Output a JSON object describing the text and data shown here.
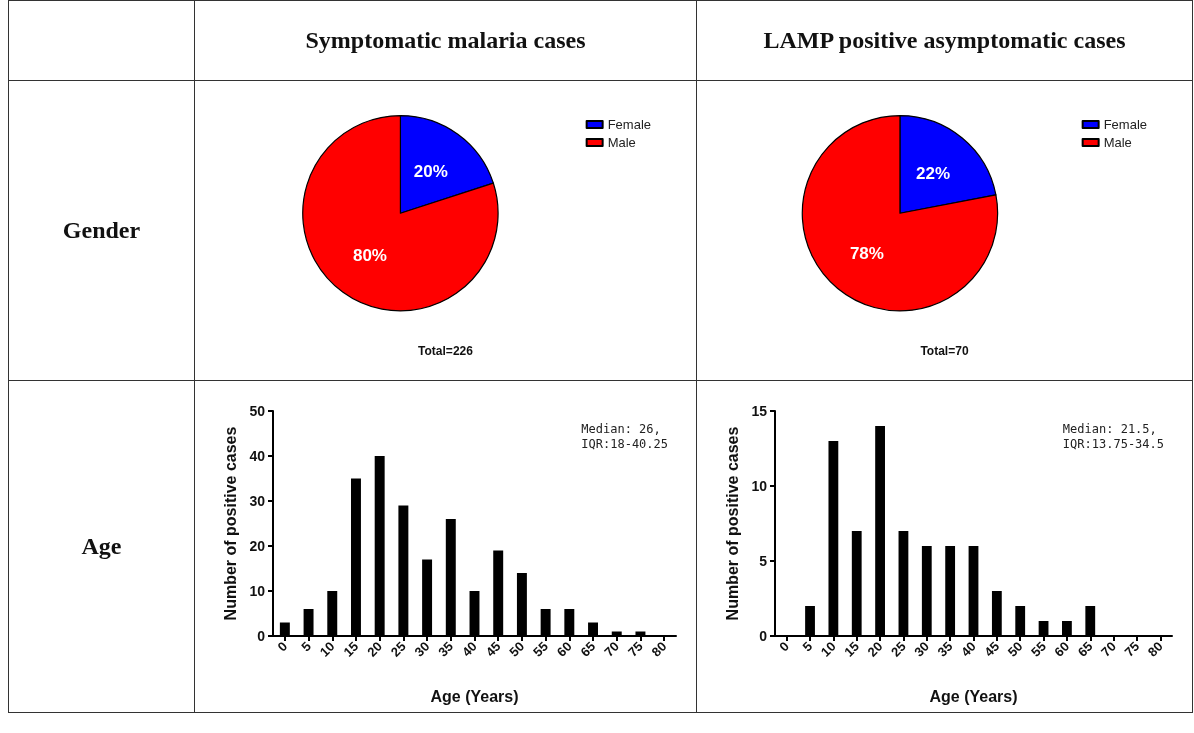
{
  "chart_data": [
    {
      "type": "pie",
      "title": "Symptomatic malaria cases",
      "categories": [
        "Female",
        "Male"
      ],
      "values": [
        20,
        80
      ],
      "colors": [
        "#0000ff",
        "#ff0000"
      ],
      "value_labels": [
        "20%",
        "80%"
      ],
      "legend": "top right",
      "annotations": [
        "Gender",
        "Total=226"
      ]
    },
    {
      "type": "pie",
      "title": "LAMP positive asymptomatic cases",
      "categories": [
        "Female",
        "Male"
      ],
      "values": [
        22,
        78
      ],
      "colors": [
        "#0000ff",
        "#ff0000"
      ],
      "value_labels": [
        "22%",
        "78%"
      ],
      "legend": "top right",
      "annotations": [
        "Total=70"
      ]
    },
    {
      "type": "bar",
      "xlabel": "Age (Years)",
      "ylabel": "Number of positive cases",
      "categories": [
        "0",
        "5",
        "10",
        "15",
        "20",
        "25",
        "30",
        "35",
        "40",
        "45",
        "50",
        "55",
        "60",
        "65",
        "70",
        "75",
        "80"
      ],
      "values": [
        3,
        6,
        10,
        35,
        40,
        29,
        17,
        26,
        10,
        19,
        14,
        6,
        6,
        3,
        1,
        1,
        0
      ],
      "color": "#000000",
      "ylim": [
        0,
        50
      ],
      "yticks": [
        0,
        10,
        20,
        30,
        40,
        50
      ],
      "grid": false,
      "legend": false,
      "annotations": [
        "Age",
        "Median: 26,\nIQR:18-40.25"
      ]
    },
    {
      "type": "bar",
      "xlabel": "Age (Years)",
      "ylabel": "Number of positive cases",
      "categories": [
        "0",
        "5",
        "10",
        "15",
        "20",
        "25",
        "30",
        "35",
        "40",
        "45",
        "50",
        "55",
        "60",
        "65",
        "70",
        "75",
        "80"
      ],
      "values": [
        0,
        2,
        13,
        7,
        14,
        7,
        6,
        6,
        6,
        3,
        2,
        1,
        1,
        2,
        0,
        0,
        0
      ],
      "color": "#000000",
      "ylim": [
        0,
        15
      ],
      "yticks": [
        0,
        5,
        10,
        15
      ],
      "grid": false,
      "legend": false,
      "annotations": [
        "Median: 21.5,\nIQR:13.75-34.5"
      ]
    }
  ]
}
